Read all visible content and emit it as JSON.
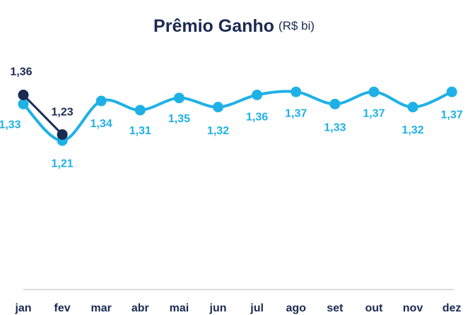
{
  "chart_data": {
    "type": "line",
    "title": "Prêmio Ganho",
    "subtitle": "(R$ bi)",
    "categories": [
      "jan",
      "fev",
      "mar",
      "abr",
      "mai",
      "jun",
      "jul",
      "ago",
      "set",
      "out",
      "nov",
      "dez"
    ],
    "series": [
      {
        "color": "#1fb1e6",
        "values": [
          1.33,
          1.21,
          1.34,
          1.31,
          1.35,
          1.32,
          1.36,
          1.37,
          1.33,
          1.37,
          1.32,
          1.37
        ],
        "value_labels": [
          "1,33",
          "1,21",
          "1,34",
          "1,31",
          "1,35",
          "1,32",
          "1,36",
          "1,37",
          "1,33",
          "1,37",
          "1,32",
          "1,37"
        ]
      },
      {
        "color": "#1b2a52",
        "values": [
          1.36,
          1.23,
          null,
          null,
          null,
          null,
          null,
          null,
          null,
          null,
          null,
          null
        ],
        "value_labels": [
          "1,36",
          "1,23",
          null,
          null,
          null,
          null,
          null,
          null,
          null,
          null,
          null,
          null
        ]
      }
    ],
    "ylim": [
      0.7,
      1.5
    ]
  }
}
